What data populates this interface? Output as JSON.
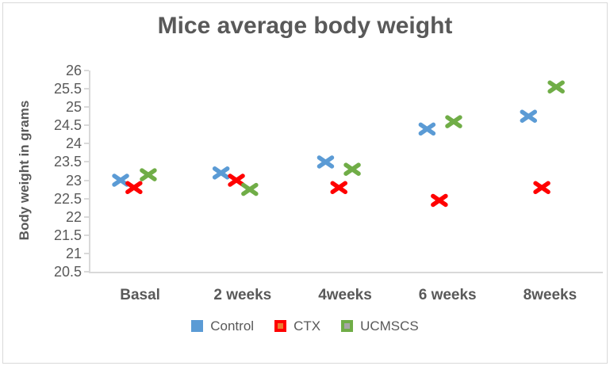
{
  "frame": {
    "background": "#FFFFFF",
    "border_color": "#D9D9D9"
  },
  "chart_data": {
    "type": "scatter",
    "title": "Mice average body weight",
    "ylabel": "Body weight in grams",
    "xlabel": "",
    "ylim": [
      20.5,
      26
    ],
    "ytick_step": 0.5,
    "y_ticks": [
      "26",
      "25.5",
      "25",
      "24.5",
      "24",
      "23.5",
      "23",
      "22.5",
      "22",
      "21.5",
      "21",
      "20.5"
    ],
    "categories": [
      "Basal",
      "2 weeks",
      "4weeks",
      "6 weeks",
      "8weeks"
    ],
    "grid": false,
    "legend_position": "bottom",
    "marker_style": "x",
    "axis_color": "#D9D9D9",
    "text_color": "#595959",
    "series": [
      {
        "name": "Control",
        "color": "#5B9BD5",
        "legend_inner": null,
        "x": [
          0.81,
          1.79,
          2.81,
          3.8,
          4.79
        ],
        "values": [
          23.0,
          23.2,
          23.5,
          24.4,
          24.75
        ]
      },
      {
        "name": "CTX",
        "color": "#FF0000",
        "legend_inner": "#ED7D31",
        "x": [
          0.94,
          1.94,
          2.94,
          3.92,
          4.92
        ],
        "values": [
          22.8,
          23.0,
          22.8,
          22.45,
          22.8
        ]
      },
      {
        "name": "UCMSCS",
        "color": "#70AD47",
        "legend_inner": "#A6A6A6",
        "x": [
          1.08,
          2.07,
          3.07,
          4.06,
          5.06
        ],
        "values": [
          23.15,
          22.75,
          23.3,
          24.6,
          25.55
        ]
      }
    ]
  }
}
